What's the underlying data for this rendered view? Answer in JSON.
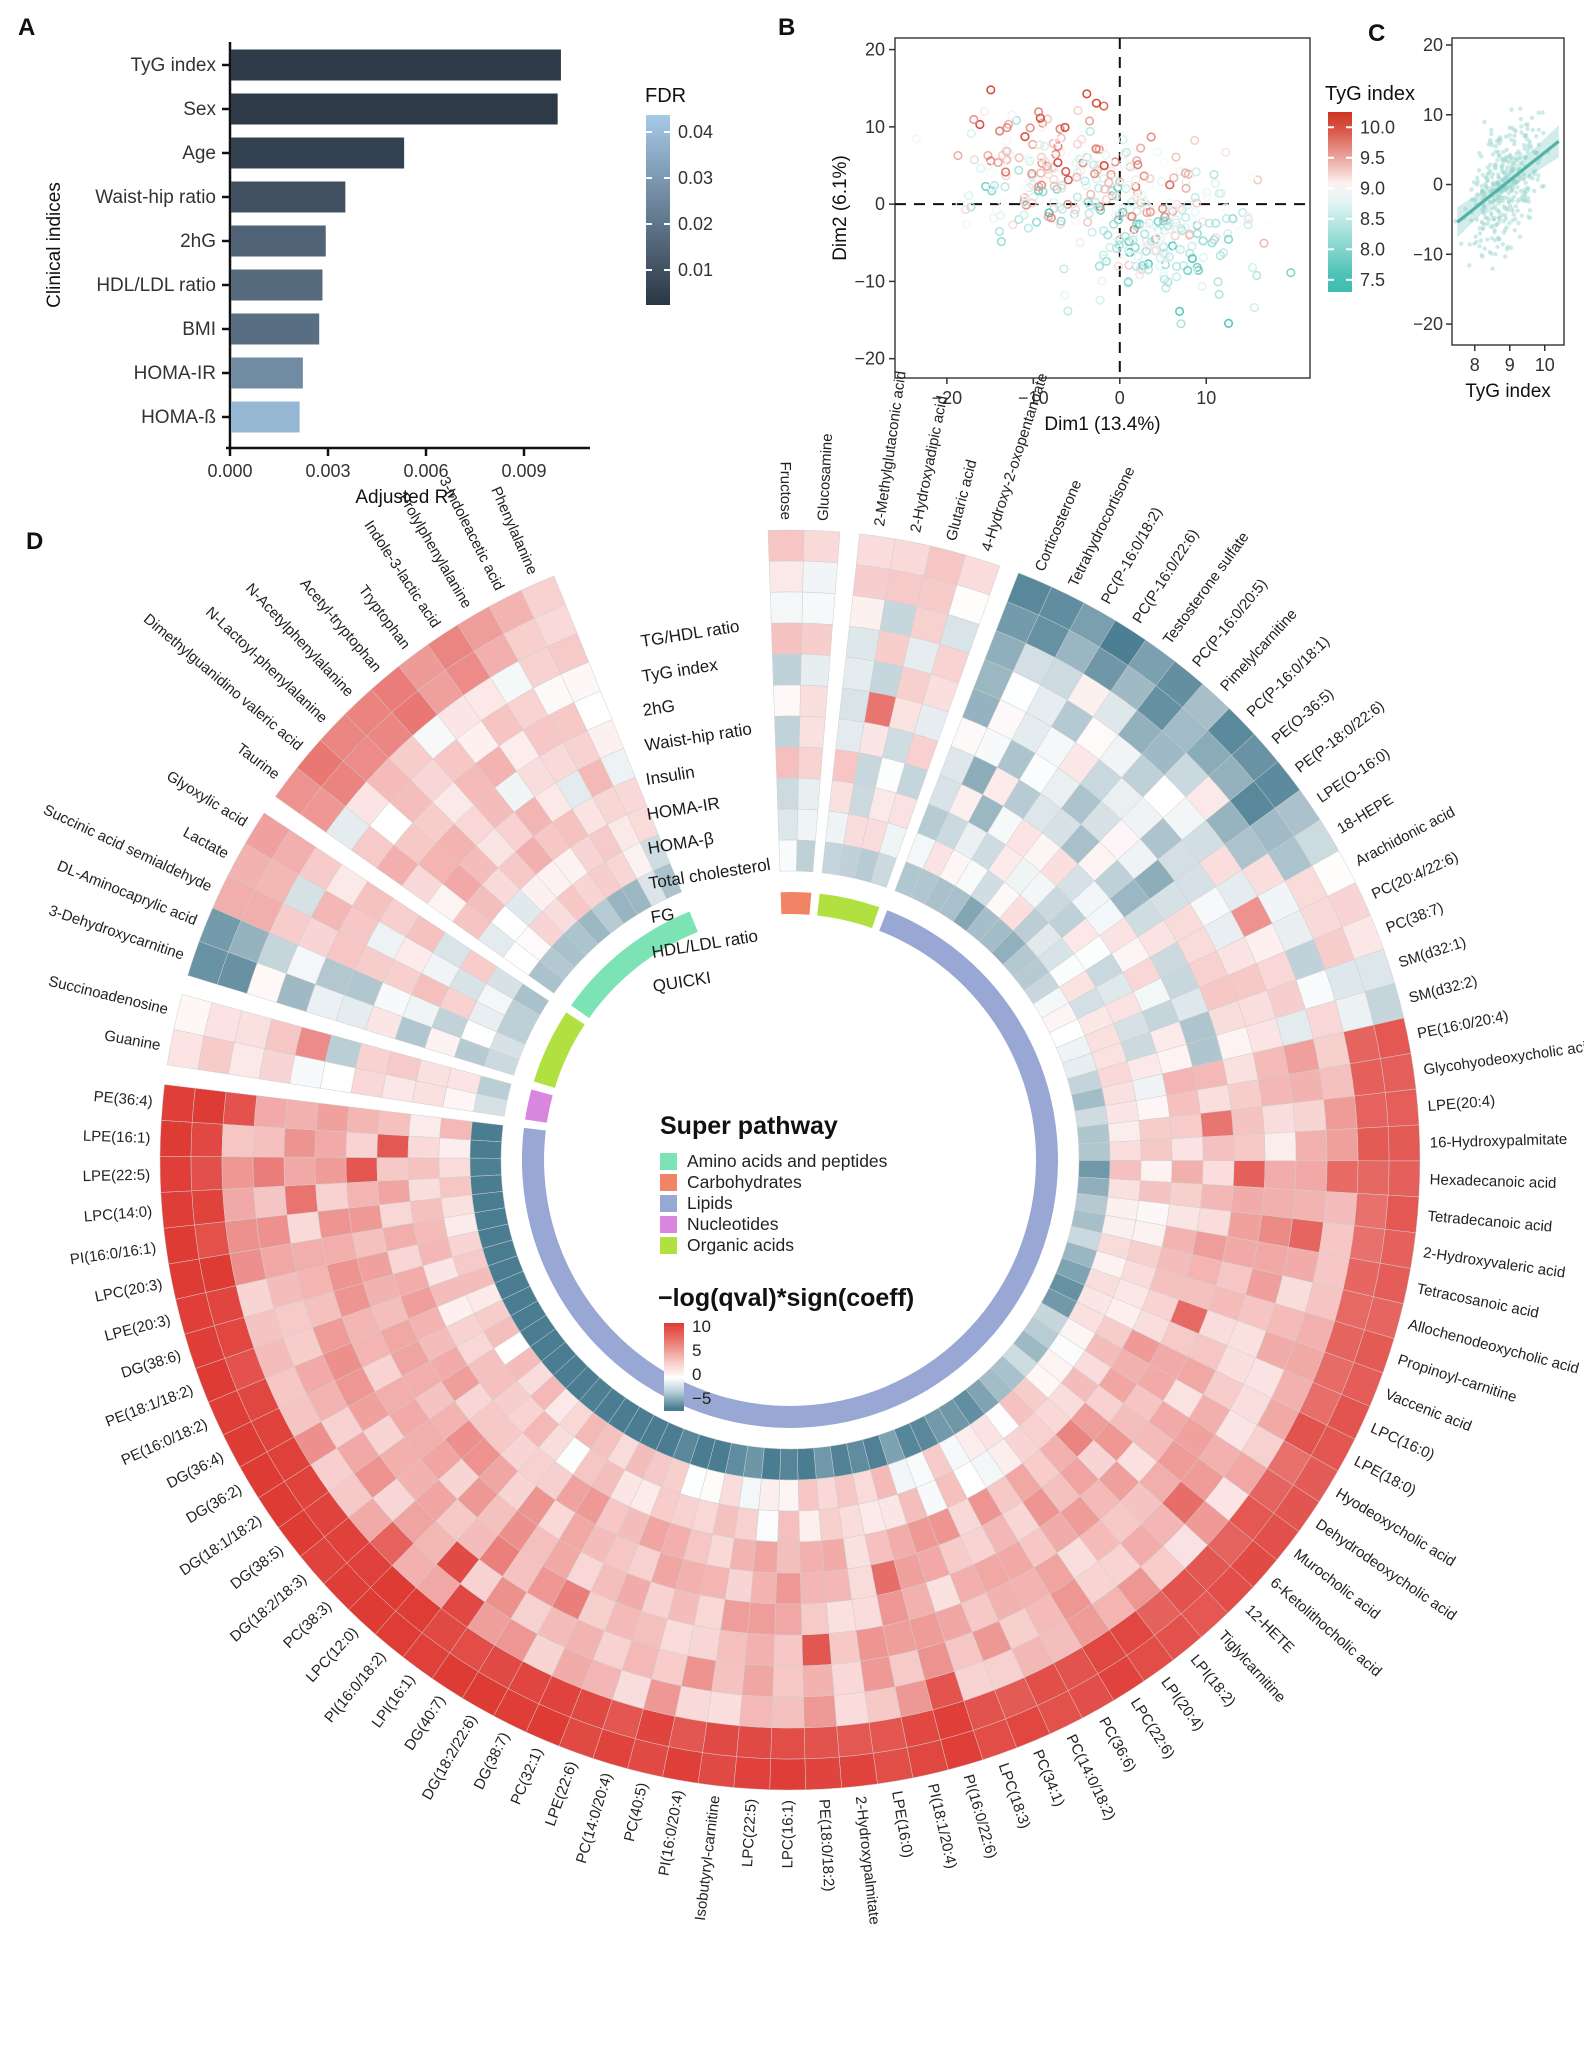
{
  "chart_data": [
    {
      "panel_label": "A",
      "type": "bar",
      "orientation": "horizontal",
      "xlabel": "Adjusted R²",
      "ylabel": "Clinical indices",
      "categories": [
        "TyG index",
        "Sex",
        "Age",
        "Waist-hip ratio",
        "2hG",
        "HDL/LDL ratio",
        "BMI",
        "HOMA-IR",
        "HOMA-ß"
      ],
      "values": [
        0.0101,
        0.01,
        0.0053,
        0.0035,
        0.0029,
        0.0028,
        0.0027,
        0.0022,
        0.0021
      ],
      "fdr": [
        0.004,
        0.004,
        0.006,
        0.01,
        0.015,
        0.017,
        0.018,
        0.026,
        0.038
      ],
      "xticks": [
        0.0,
        0.003,
        0.006,
        0.009
      ],
      "xlim": [
        0,
        0.0108
      ],
      "legend": {
        "title": "FDR",
        "ticks": [
          0.04,
          0.03,
          0.02,
          0.01
        ],
        "top_color": "#a5cae8",
        "bottom_color": "#2b3644"
      }
    },
    {
      "panel_label": "B",
      "type": "scatter",
      "xlabel": "Dim1 (13.4%)",
      "ylabel": "Dim2 (6.1%)",
      "xticks": [
        -20,
        -10,
        0,
        10
      ],
      "yticks": [
        20,
        10,
        0,
        -10,
        -20
      ],
      "xlim": [
        -26,
        22
      ],
      "ylim": [
        -22.5,
        21.5
      ],
      "crosshair": [
        0,
        0
      ],
      "n_points": 430,
      "clusters_estimate": [
        {
          "cx": -7,
          "cy": 3.5,
          "sdx": 5.5,
          "sdy": 4.2,
          "n": 195
        },
        {
          "cx": 4.5,
          "cy": -3,
          "sdx": 5.2,
          "sdy": 4.6,
          "n": 235
        }
      ],
      "legend": {
        "title": "TyG index",
        "ticks": [
          10.0,
          9.5,
          9.0,
          8.5,
          8.0,
          7.5
        ],
        "high_color": "#cf3322",
        "mid_color": "#ffffff",
        "low_color": "#3dbdb1",
        "domain": [
          7.3,
          10.25
        ]
      }
    },
    {
      "panel_label": "C",
      "type": "scatter",
      "xlabel": "TyG index",
      "xticks": [
        8,
        9,
        10
      ],
      "yticks": [
        20,
        10,
        0,
        -10,
        -20
      ],
      "xlim": [
        7.35,
        10.55
      ],
      "ylim": [
        -23,
        21
      ],
      "n_points": 360,
      "trend": {
        "x0": 7.5,
        "x1": 10.4,
        "slope": 4.0,
        "x_center": 8.85,
        "line_color": "#54b3a7",
        "band_color": "#7cc9bf",
        "point_color": "#a4dad2"
      }
    },
    {
      "panel_label": "D",
      "type": "circular-heatmap",
      "rings_outer_to_inner": [
        "TG/HDL ratio",
        "TyG index",
        "2hG",
        "Waist-hip ratio",
        "Insulin",
        "HOMA-IR",
        "HOMA-β",
        "Total cholesterol",
        "FG",
        "HDL/LDL ratio",
        "QUICKI"
      ],
      "pathway_legend": {
        "title": "Super pathway",
        "items": [
          {
            "label": "Amino acids and peptides",
            "color": "#7ce3b4"
          },
          {
            "label": "Carbohydrates",
            "color": "#f08465"
          },
          {
            "label": "Lipids",
            "color": "#98a7d3"
          },
          {
            "label": "Nucleotides",
            "color": "#d987de"
          },
          {
            "label": "Organic acids",
            "color": "#b0e140"
          }
        ]
      },
      "value_legend": {
        "title": "−log(qval)*sign(coeff)",
        "ticks": [
          10,
          5,
          0,
          -5
        ],
        "pos_color": "#df3b35",
        "zero_color": "#ffffff",
        "neg_color": "#4a7d92"
      },
      "groups": [
        {
          "pathway": "Carbohydrates",
          "items": [
            [
              "Fructose",
              1.2,
              -0.5
            ],
            [
              "Glucosamine",
              0.8,
              -0.8
            ]
          ]
        },
        {
          "pathway": "Organic acids",
          "items": [
            [
              "2-Methylglutaconic acid",
              0.6,
              -1
            ],
            [
              "2-Hydroxyadipic acid",
              1.2,
              -1
            ],
            [
              "Glutaric acid",
              1.8,
              -1.4
            ],
            [
              "4-Hydroxy-2-oxopentanoate",
              0.8,
              -1
            ]
          ]
        },
        {
          "pathway": "Lipids",
          "items": [
            [
              "Corticosterone",
              -4.5,
              -1
            ],
            [
              "Tetrahydrocortisone",
              -4.5,
              -1
            ],
            [
              "PC(P-16:0/18:2)",
              -3.5,
              -2
            ],
            [
              "PC(P-16:0/22:6)",
              -4.5,
              -2
            ],
            [
              "Testosterone sulfate",
              -3,
              -2
            ],
            [
              "PC(P-16:0/20:5)",
              -4,
              -2
            ],
            [
              "Pimelylcarnitine",
              -2.5,
              -1.5
            ],
            [
              "PC(P-16:0/18:1)",
              -4,
              -2
            ],
            [
              "PE(O-36:5)",
              -3.5,
              -2
            ],
            [
              "PE(P-18:0/22:6)",
              -4.2,
              -2
            ],
            [
              "LPE(O-16:0)",
              -2.5,
              -1.5
            ],
            [
              "18-HEPE",
              -1.5,
              -0.5
            ],
            [
              "Arachidonic acid",
              0.5,
              -0.5
            ],
            [
              "PC(20:4/22:6)",
              1,
              -0.5
            ],
            [
              "PC(38:7)",
              1,
              -0.5
            ],
            [
              "SM(d32:1)",
              -1.2,
              -0.5
            ],
            [
              "SM(d32:2)",
              -1.2,
              -0.5
            ],
            [
              "PE(16:0/20:4)",
              7.5,
              -2
            ],
            [
              "Glycohyodeoxycholic acid",
              7.5,
              -1
            ],
            [
              "LPE(20:4)",
              7.5,
              -2
            ],
            [
              "16-Hydroxypalmitate",
              7.5,
              -2
            ],
            [
              "Hexadecanoic acid",
              7.5,
              -2.5
            ],
            [
              "Tetradecanoic acid",
              7.5,
              -2.5
            ],
            [
              "2-Hydroxyvaleric acid",
              7,
              -2
            ],
            [
              "Tetracosanoic acid",
              7.5,
              -2
            ],
            [
              "Allochenodeoxycholic acid",
              7.5,
              -1
            ],
            [
              "Propinoyl-carnitine",
              7.5,
              -2
            ],
            [
              "Vaccenic acid",
              8,
              -2.5
            ],
            [
              "LPC(16:0)",
              8,
              -3
            ],
            [
              "LPE(18:0)",
              8,
              -3
            ],
            [
              "Hyodeoxycholic acid",
              8,
              -1
            ],
            [
              "Dehydrodeoxycholic acid",
              8.5,
              -1
            ],
            [
              "Murocholic acid",
              8.5,
              -1.5
            ],
            [
              "6-Ketolithocholic acid",
              8.5,
              -1.5
            ],
            [
              "12-HETE",
              8.5,
              -2
            ],
            [
              "Tiglylcarnitine",
              8.5,
              -2
            ],
            [
              "LPI(18:2)",
              9,
              -3
            ],
            [
              "LPI(20:4)",
              9,
              -3
            ],
            [
              "LPC(22:6)",
              9,
              -3
            ],
            [
              "PC(36:6)",
              9,
              -3
            ],
            [
              "PC(14:0/18:2)",
              9,
              -3.5
            ],
            [
              "PC(34:1)",
              9,
              -3.5
            ],
            [
              "LPC(18:3)",
              9,
              -3
            ],
            [
              "PI(16:0/22:6)",
              9.5,
              -4
            ],
            [
              "PI(18:1/20:4)",
              9.5,
              -4
            ],
            [
              "LPE(16:0)",
              9,
              -3.5
            ],
            [
              "2-Hydroxypalmitate",
              9,
              -3.5
            ],
            [
              "PE(18:0/18:2)",
              9.5,
              -4
            ],
            [
              "LPC(16:1)",
              9.5,
              -4
            ],
            [
              "LPC(22:5)",
              9.5,
              -4
            ],
            [
              "Isobutyryl-carnitine",
              9,
              -3.5
            ],
            [
              "PI(16:0/20:4)",
              9.5,
              -4
            ],
            [
              "PC(40:5)",
              9.5,
              -4
            ],
            [
              "PC(14:0/20:4)",
              9.5,
              -4
            ],
            [
              "LPE(22:6)",
              9.5,
              -4
            ],
            [
              "PC(32:1)",
              9.5,
              -4
            ],
            [
              "DG(38:7)",
              10,
              -4.5
            ],
            [
              "DG(18:2/22:6)",
              10,
              -4.5
            ],
            [
              "DG(40:7)",
              10,
              -4.5
            ],
            [
              "LPI(16:1)",
              10,
              -4.5
            ],
            [
              "PI(16:0/18:2)",
              10,
              -4.5
            ],
            [
              "LPC(12:0)",
              10,
              -4.5
            ],
            [
              "PC(38:3)",
              10,
              -4.5
            ],
            [
              "DG(18:2/18:3)",
              10,
              -5
            ],
            [
              "DG(38:5)",
              10,
              -5
            ],
            [
              "DG(18:1/18:2)",
              10,
              -5
            ],
            [
              "DG(36:2)",
              10,
              -5
            ],
            [
              "DG(36:4)",
              10,
              -5
            ],
            [
              "PE(16:0/18:2)",
              10,
              -5
            ],
            [
              "PE(18:1/18:2)",
              10,
              -5
            ],
            [
              "DG(38:6)",
              10,
              -5
            ],
            [
              "LPE(20:3)",
              10,
              -5
            ],
            [
              "LPC(20:3)",
              10,
              -4.5
            ],
            [
              "PI(16:0/16:1)",
              10,
              -4.5
            ],
            [
              "LPC(14:0)",
              10,
              -4.5
            ],
            [
              "LPE(22:5)",
              10,
              -4.5
            ],
            [
              "LPE(16:1)",
              10,
              -4.5
            ],
            [
              "PE(36:4)",
              10,
              -4.5
            ]
          ]
        },
        {
          "pathway": "Nucleotides",
          "items": [
            [
              "Guanine",
              0.9,
              -0.6
            ],
            [
              "Succinoadenosine",
              0.7,
              -1
            ]
          ]
        },
        {
          "pathway": "Organic acids",
          "items": [
            [
              "3-Dehydroxycarnitine",
              -4,
              -1
            ],
            [
              "DL-Aminocaprylic acid",
              -3.4,
              -1
            ],
            [
              "Succinic acid semialdehyde",
              2.6,
              -1
            ],
            [
              "Lactate",
              3,
              -1.2
            ],
            [
              "Glyoxylic acid",
              3.4,
              -1.2
            ]
          ]
        },
        {
          "pathway": "Amino acids and peptides",
          "items": [
            [
              "Taurine",
              4,
              -1.5
            ],
            [
              "Dimethylguanidino valeric acid",
              6,
              -2
            ],
            [
              "N-Lactoyl-phenylalanine",
              5.5,
              -2
            ],
            [
              "N-Acetylphenylalanine",
              5,
              -2
            ],
            [
              "Acetyl-tryptophan",
              5.5,
              -2
            ],
            [
              "Tryptophan",
              4.5,
              -1.5
            ],
            [
              "Indole-3-lactic acid",
              5.5,
              -2
            ],
            [
              "Prolylphenylalanine",
              4,
              -1.5
            ],
            [
              "3-Indoleacetic acid",
              2.5,
              -1
            ],
            [
              "Phenylalanine",
              1.5,
              -1
            ]
          ]
        }
      ]
    }
  ]
}
